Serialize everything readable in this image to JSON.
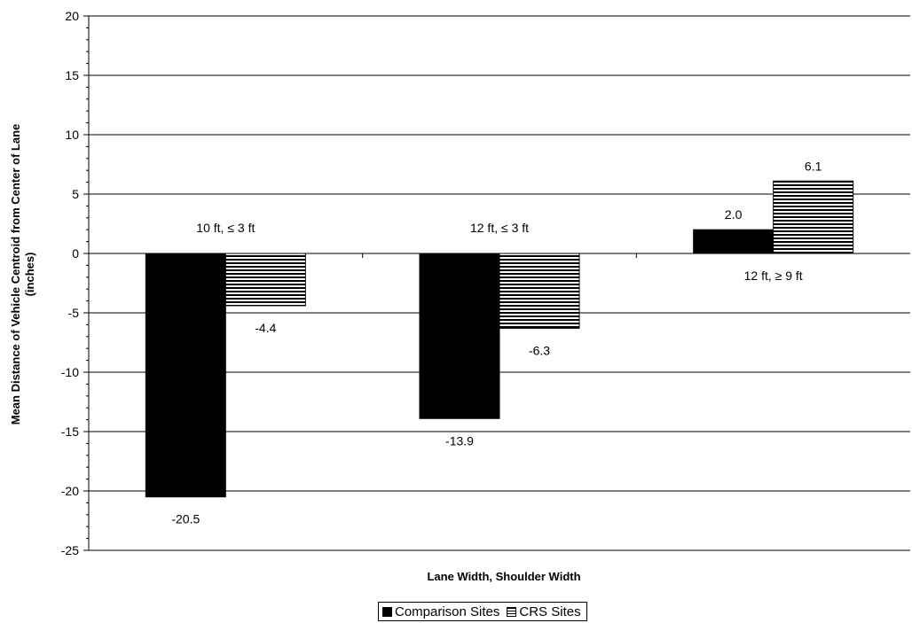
{
  "chart_data": {
    "type": "bar",
    "categories": [
      "10 ft, ≤  3 ft",
      "12 ft, ≤  3 ft",
      "12 ft, ≥  9 ft"
    ],
    "series": [
      {
        "name": "Comparison Sites",
        "values": [
          -20.5,
          -13.9,
          2.0
        ],
        "value_labels": [
          "-20.5",
          "-13.9",
          "2.0"
        ],
        "fill": "solid",
        "color": "#000000"
      },
      {
        "name": "CRS Sites",
        "values": [
          -4.4,
          -6.3,
          6.1
        ],
        "value_labels": [
          "-4.4",
          "-6.3",
          "6.1"
        ],
        "fill": "horizontal-hatch",
        "color": "#000000"
      }
    ],
    "xlabel": "Lane Width, Shoulder Width",
    "ylabel_line1": "Mean Distance of Vehicle Centroid from Center of Lane",
    "ylabel_line2": "(inches)",
    "ylim": [
      -25,
      20
    ],
    "yticks": [
      20,
      15,
      10,
      5,
      0,
      -5,
      -10,
      -15,
      -20,
      -25
    ],
    "ytick_labels": [
      "20",
      "15",
      "10",
      "5",
      "0",
      "-5",
      "-10",
      "-15",
      "-20",
      "-25"
    ],
    "grid": true,
    "legend": {
      "position": "bottom-center",
      "entries": [
        "Comparison Sites",
        "CRS Sites"
      ]
    }
  }
}
